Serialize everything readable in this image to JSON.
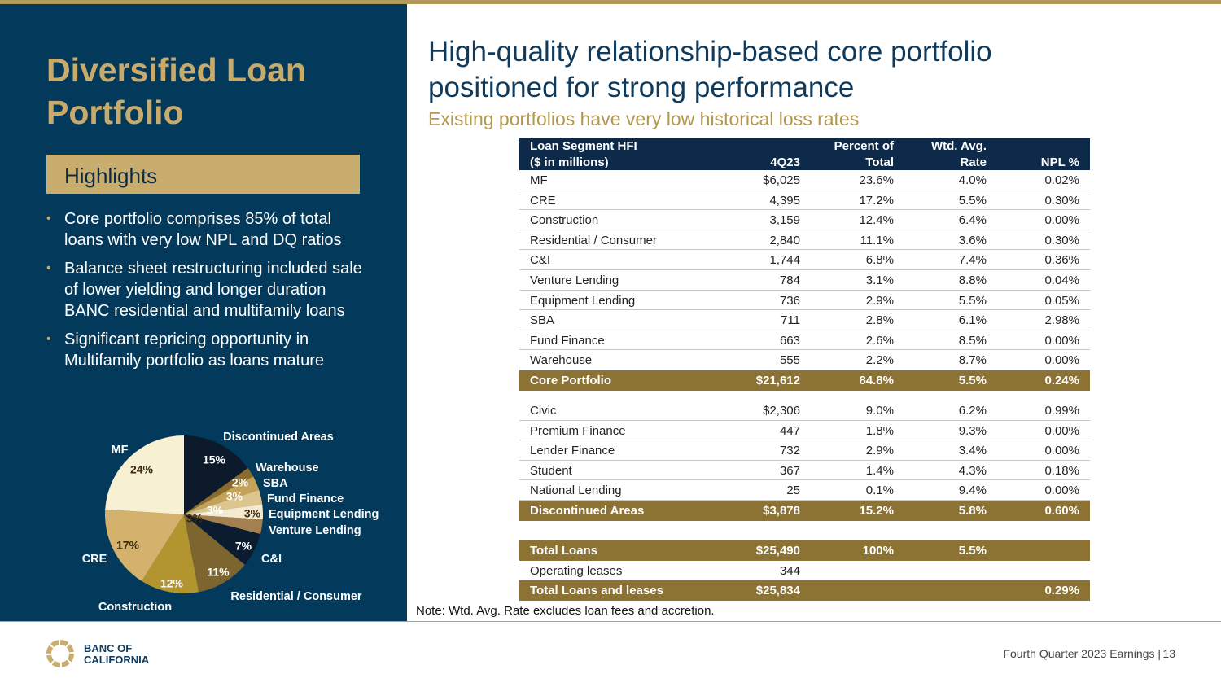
{
  "sidebar": {
    "title_lines": [
      "Diversified Loan",
      "Portfolio"
    ],
    "highlights_heading": "Highlights",
    "bullets": [
      "Core portfolio comprises 85% of total loans with very low NPL and DQ ratios",
      "Balance sheet restructuring included sale of lower yielding and longer duration BANC residential and multifamily loans",
      "Significant repricing opportunity in Multifamily portfolio as loans mature"
    ]
  },
  "chart_data": {
    "type": "pie",
    "categories": [
      "Discontinued Areas",
      "Warehouse",
      "SBA",
      "Fund Finance",
      "Equipment Lending",
      "Venture Lending",
      "C&I",
      "Residential / Consumer",
      "Construction",
      "CRE",
      "MF"
    ],
    "values": [
      15,
      2,
      3,
      3,
      3,
      3,
      7,
      11,
      12,
      17,
      24
    ],
    "value_labels": [
      "15%",
      "2%",
      "3%",
      "3%",
      "3%",
      "3%",
      "7%",
      "11%",
      "12%",
      "17%",
      "24%"
    ],
    "colors": [
      "#0c1a2b",
      "#8a6b2c",
      "#c3a35a",
      "#dcc68e",
      "#f4ead0",
      "#a47f4f",
      "#0b1c30",
      "#7d6530",
      "#b3952f",
      "#d4b26e",
      "#f8f0d2"
    ]
  },
  "main": {
    "headline_lines": [
      "High-quality relationship-based core portfolio",
      "positioned for strong performance"
    ],
    "subtitle": "Existing portfolios have very low historical loss rates",
    "note": "Note: Wtd. Avg. Rate excludes loan fees and accretion."
  },
  "table": {
    "header": [
      [
        "Loan Segment HFI",
        "($ in millions)"
      ],
      [
        "4Q23"
      ],
      [
        "Percent of",
        "Total"
      ],
      [
        "Wtd. Avg.",
        "Rate"
      ],
      [
        "NPL %"
      ]
    ],
    "groups": [
      {
        "rows": [
          {
            "cells": [
              "MF",
              "$6,025",
              "23.6%",
              "4.0%",
              "0.02%"
            ]
          },
          {
            "cells": [
              "CRE",
              "4,395",
              "17.2%",
              "5.5%",
              "0.30%"
            ]
          },
          {
            "cells": [
              "Construction",
              "3,159",
              "12.4%",
              "6.4%",
              "0.00%"
            ]
          },
          {
            "cells": [
              "Residential / Consumer",
              "2,840",
              "11.1%",
              "3.6%",
              "0.30%"
            ]
          },
          {
            "cells": [
              "C&I",
              "1,744",
              "6.8%",
              "7.4%",
              "0.36%"
            ]
          },
          {
            "cells": [
              "Venture Lending",
              "784",
              "3.1%",
              "8.8%",
              "0.04%"
            ]
          },
          {
            "cells": [
              "Equipment Lending",
              "736",
              "2.9%",
              "5.5%",
              "0.05%"
            ]
          },
          {
            "cells": [
              "SBA",
              "711",
              "2.8%",
              "6.1%",
              "2.98%"
            ]
          },
          {
            "cells": [
              "Fund Finance",
              "663",
              "2.6%",
              "8.5%",
              "0.00%"
            ]
          },
          {
            "cells": [
              "Warehouse",
              "555",
              "2.2%",
              "8.7%",
              "0.00%"
            ]
          },
          {
            "cells": [
              "Core Portfolio",
              "$21,612",
              "84.8%",
              "5.5%",
              "0.24%"
            ],
            "total": true
          }
        ]
      },
      {
        "rows": [
          {
            "cells": [
              "Civic",
              "$2,306",
              "9.0%",
              "6.2%",
              "0.99%"
            ]
          },
          {
            "cells": [
              "Premium Finance",
              "447",
              "1.8%",
              "9.3%",
              "0.00%"
            ]
          },
          {
            "cells": [
              "Lender Finance",
              "732",
              "2.9%",
              "3.4%",
              "0.00%"
            ]
          },
          {
            "cells": [
              "Student",
              "367",
              "1.4%",
              "4.3%",
              "0.18%"
            ]
          },
          {
            "cells": [
              "National Lending",
              "25",
              "0.1%",
              "9.4%",
              "0.00%"
            ]
          },
          {
            "cells": [
              "Discontinued Areas",
              "$3,878",
              "15.2%",
              "5.8%",
              "0.60%"
            ],
            "total": true
          }
        ]
      },
      {
        "rows": [
          {
            "cells": [
              "Total Loans",
              "$25,490",
              "100%",
              "5.5%"
            ],
            "total": true
          },
          {
            "cells": [
              "Operating leases",
              "344"
            ]
          },
          {
            "cells": [
              "Total Loans and leases",
              "$25,834",
              null,
              null,
              "0.29%"
            ],
            "total": true
          }
        ]
      }
    ]
  },
  "footer": {
    "logo_lines": [
      "BANC OF",
      "CALIFORNIA"
    ],
    "text": "Fourth Quarter 2023 Earnings |",
    "page_number": "13"
  }
}
